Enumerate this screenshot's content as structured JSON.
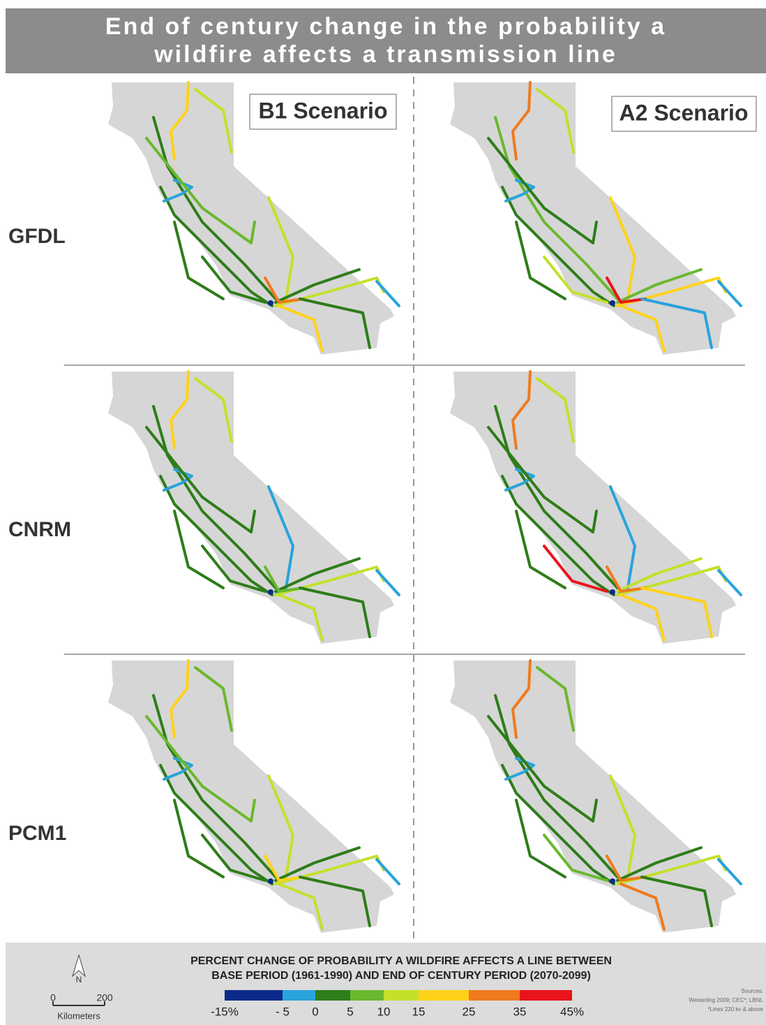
{
  "title": [
    "End of century change in the probability a",
    "wildfire affects a transmission line"
  ],
  "scenarios": [
    "B1 Scenario",
    "A2 Scenario"
  ],
  "models": [
    "GFDL",
    "CNRM",
    "PCM1"
  ],
  "legend": {
    "title": [
      "PERCENT CHANGE OF PROBABILITY A WILDFIRE AFFECTS A LINE BETWEEN",
      "BASE PERIOD (1961-1990) AND END OF CENTURY PERIOD (2070-2099)"
    ],
    "labels": [
      "-15%",
      "- 5",
      "0",
      "5",
      "10",
      "15",
      "25",
      "35",
      "45%"
    ],
    "colors": [
      "#0a2a8a",
      "#29a3dc",
      "#2e7d1a",
      "#6ab82e",
      "#c4e02a",
      "#ffd21a",
      "#f07a1e",
      "#e8141c"
    ]
  },
  "scale_bar": {
    "north": "N",
    "ticks": [
      "0",
      "200"
    ],
    "unit": "Kilometers"
  },
  "sources": [
    "Sources:",
    "Westerling 2009; CEC*; LBNL",
    "*Lines 220 kv & above"
  ]
}
